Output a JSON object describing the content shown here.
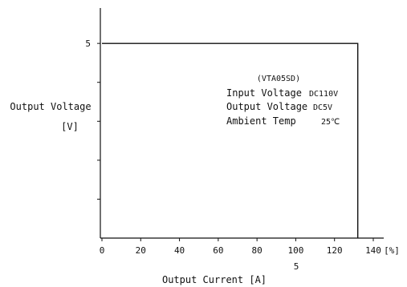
{
  "chart_data": {
    "type": "line",
    "title": "",
    "xlabel": "Output Current [A]",
    "ylabel": "Output Voltage",
    "ylabel_unit": "[V]",
    "x_unit_label": "[%]",
    "x_secondary_label": "5",
    "x_ticks": [
      0,
      20,
      40,
      60,
      80,
      100,
      120,
      140
    ],
    "y_ticks_labeled": [
      5
    ],
    "xlim": [
      0,
      140
    ],
    "ylim": [
      0,
      5.25
    ],
    "grid": false,
    "series": [
      {
        "x": [
          0,
          132,
          132
        ],
        "y": [
          5,
          5,
          0
        ]
      }
    ],
    "annotations": {
      "model": "(VTA05SD)",
      "lines": [
        {
          "label": "Input Voltage",
          "value": "DC110V"
        },
        {
          "label": "Output Voltage",
          "value": "DC5V"
        },
        {
          "label": "Ambient Temp",
          "value": "25℃"
        }
      ]
    }
  }
}
